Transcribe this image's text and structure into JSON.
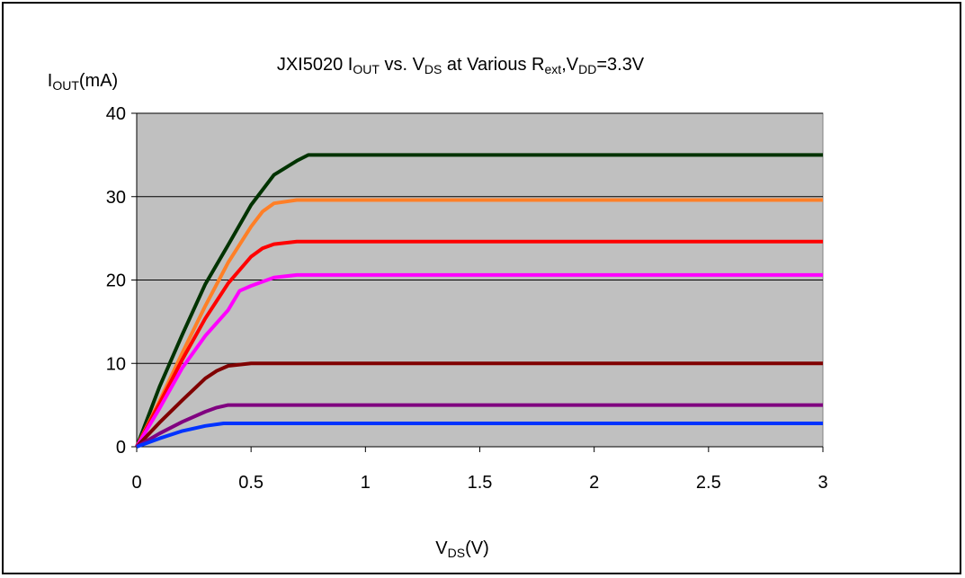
{
  "chart_data": {
    "type": "line",
    "title": {
      "parts": [
        {
          "text": "JXI5020 I"
        },
        {
          "text": "OUT",
          "sub": true
        },
        {
          "text": " vs. V"
        },
        {
          "text": "DS",
          "sub": true
        },
        {
          "text": " at Various R"
        },
        {
          "text": "ext",
          "sub": true
        },
        {
          "text": ",V"
        },
        {
          "text": "DD",
          "sub": true
        },
        {
          "text": "=3.3V"
        }
      ]
    },
    "ylabel": {
      "parts": [
        {
          "text": "I"
        },
        {
          "text": "OUT",
          "sub": true
        },
        {
          "text": "(mA)"
        }
      ]
    },
    "xlabel": {
      "parts": [
        {
          "text": "V"
        },
        {
          "text": "DS",
          "sub": true
        },
        {
          "text": "(V)"
        }
      ]
    },
    "xlim": [
      0,
      3
    ],
    "ylim": [
      0,
      40
    ],
    "xticks": [
      {
        "value": 0,
        "label": "0"
      },
      {
        "value": 0.5,
        "label": "0.5"
      },
      {
        "value": 1,
        "label": "1"
      },
      {
        "value": 1.5,
        "label": "1.5"
      },
      {
        "value": 2,
        "label": "2"
      },
      {
        "value": 2.5,
        "label": "2.5"
      },
      {
        "value": 3,
        "label": "3"
      }
    ],
    "yticks": [
      {
        "value": 0,
        "label": "0"
      },
      {
        "value": 10,
        "label": "10"
      },
      {
        "value": 20,
        "label": "20"
      },
      {
        "value": 30,
        "label": "30"
      },
      {
        "value": 40,
        "label": "40"
      }
    ],
    "grid": {
      "horizontal": true,
      "vertical": false,
      "color": "#000000"
    },
    "plot_background": "#c0c0c0",
    "series": [
      {
        "color": "#003300",
        "points": [
          [
            0,
            0
          ],
          [
            0.05,
            3.6
          ],
          [
            0.1,
            7.2
          ],
          [
            0.2,
            13.5
          ],
          [
            0.3,
            19.5
          ],
          [
            0.4,
            24.2
          ],
          [
            0.5,
            29.0
          ],
          [
            0.6,
            32.6
          ],
          [
            0.7,
            34.3
          ],
          [
            0.75,
            35.0
          ],
          [
            3,
            35.0
          ]
        ]
      },
      {
        "color": "#ff7f27",
        "points": [
          [
            0,
            0
          ],
          [
            0.1,
            5.5
          ],
          [
            0.2,
            11.3
          ],
          [
            0.3,
            16.9
          ],
          [
            0.4,
            22.1
          ],
          [
            0.5,
            26.4
          ],
          [
            0.55,
            28.2
          ],
          [
            0.6,
            29.2
          ],
          [
            0.7,
            29.6
          ],
          [
            3,
            29.6
          ]
        ]
      },
      {
        "color": "#ff0000",
        "points": [
          [
            0,
            0
          ],
          [
            0.1,
            5.2
          ],
          [
            0.2,
            10.5
          ],
          [
            0.3,
            15.4
          ],
          [
            0.4,
            19.6
          ],
          [
            0.5,
            22.8
          ],
          [
            0.55,
            23.8
          ],
          [
            0.6,
            24.3
          ],
          [
            0.7,
            24.6
          ],
          [
            3,
            24.6
          ]
        ]
      },
      {
        "color": "#ff00ff",
        "points": [
          [
            0,
            0
          ],
          [
            0.1,
            4.6
          ],
          [
            0.2,
            9.5
          ],
          [
            0.3,
            13.3
          ],
          [
            0.4,
            16.4
          ],
          [
            0.45,
            18.7
          ],
          [
            0.5,
            19.3
          ],
          [
            0.6,
            20.3
          ],
          [
            0.7,
            20.6
          ],
          [
            3,
            20.6
          ]
        ]
      },
      {
        "color": "#800000",
        "points": [
          [
            0,
            0
          ],
          [
            0.1,
            2.9
          ],
          [
            0.2,
            5.6
          ],
          [
            0.3,
            8.2
          ],
          [
            0.35,
            9.1
          ],
          [
            0.4,
            9.7
          ],
          [
            0.5,
            10.0
          ],
          [
            3,
            10.0
          ]
        ]
      },
      {
        "color": "#800080",
        "points": [
          [
            0,
            0
          ],
          [
            0.1,
            1.6
          ],
          [
            0.2,
            3.0
          ],
          [
            0.3,
            4.2
          ],
          [
            0.35,
            4.7
          ],
          [
            0.4,
            5.0
          ],
          [
            3,
            5.0
          ]
        ]
      },
      {
        "color": "#0033ff",
        "points": [
          [
            0,
            0
          ],
          [
            0.1,
            1.0
          ],
          [
            0.2,
            1.9
          ],
          [
            0.3,
            2.5
          ],
          [
            0.38,
            2.8
          ],
          [
            3,
            2.8
          ]
        ]
      }
    ]
  }
}
